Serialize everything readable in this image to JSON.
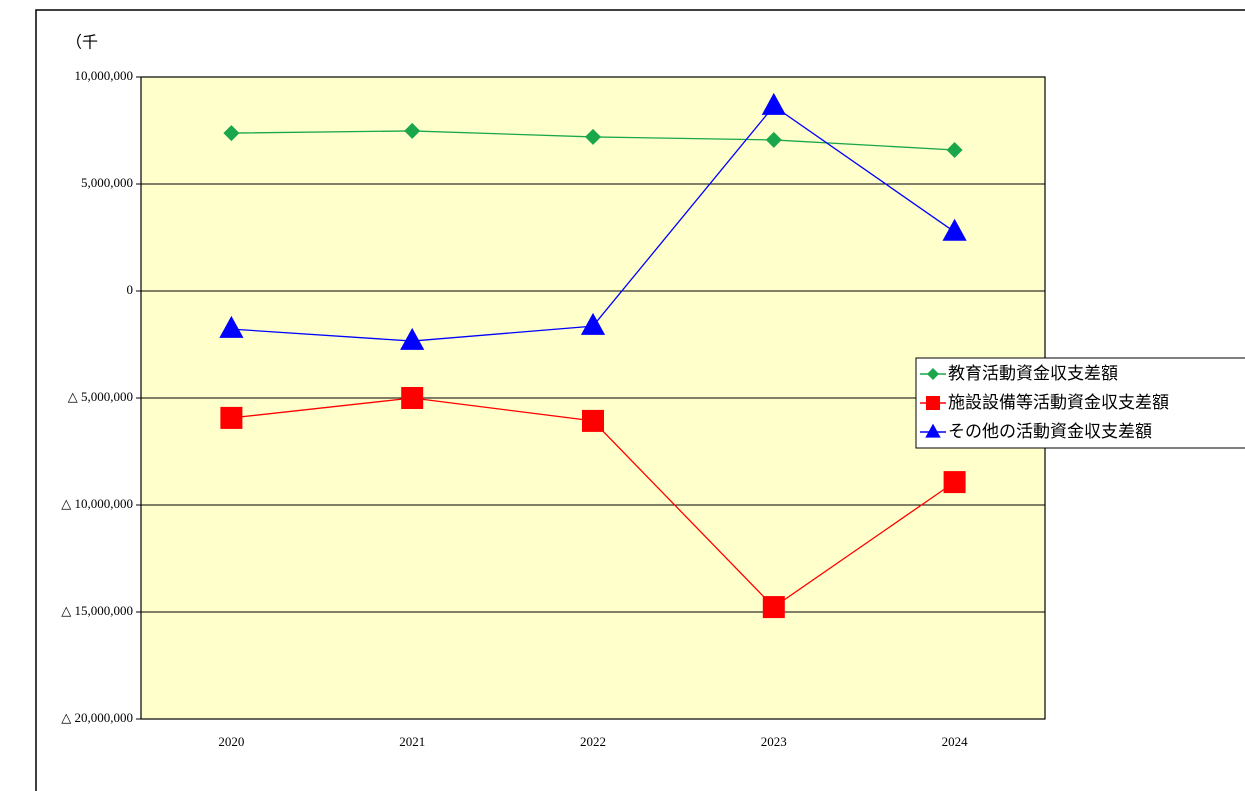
{
  "chart_data": {
    "type": "line",
    "y_label": "（千",
    "categories": [
      "2020",
      "2021",
      "2022",
      "2023",
      "2024"
    ],
    "series": [
      {
        "name": "教育活動資金収支差額",
        "color": "#1aa64a",
        "marker": "diamond",
        "values": [
          7380000,
          7480000,
          7200000,
          7060000,
          6590000
        ]
      },
      {
        "name": "施設設備等活動資金収支差額",
        "color": "#ff0000",
        "marker": "square",
        "values": [
          -5930000,
          -5000000,
          -6070000,
          -14770000,
          -8930000
        ]
      },
      {
        "name": "その他の活動資金収支差額",
        "color": "#0000ff",
        "marker": "triangle",
        "values": [
          -1780000,
          -2340000,
          -1640000,
          8640000,
          2760000
        ]
      }
    ],
    "ylim": [
      -20000000,
      10000000
    ],
    "yticks": [
      {
        "value": -20000000,
        "label": "△ 20,000,000"
      },
      {
        "value": -15000000,
        "label": "△ 15,000,000"
      },
      {
        "value": -10000000,
        "label": "△ 10,000,000"
      },
      {
        "value": -5000000,
        "label": "△ 5,000,000"
      },
      0,
      {
        "value": 5000000,
        "label": "5,000,000"
      },
      {
        "value": 10000000,
        "label": "10,000,000"
      }
    ],
    "grid": true,
    "plot_background": "#ffffcc",
    "legend": "right"
  }
}
